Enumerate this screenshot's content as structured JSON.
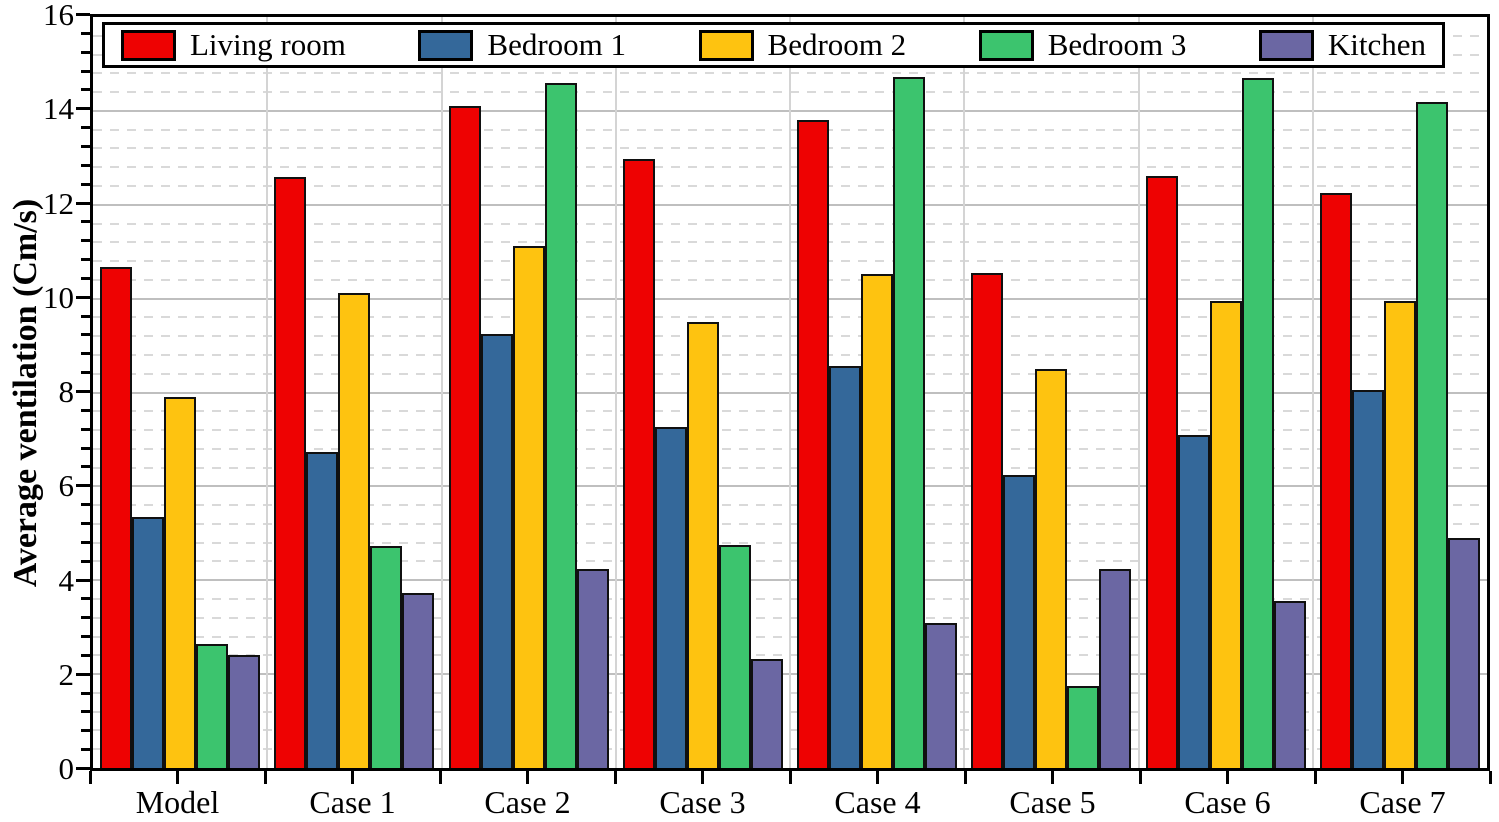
{
  "chart_data": {
    "type": "bar",
    "title": "",
    "xlabel": "",
    "ylabel": "Average ventilation (Cm/s)",
    "ylim": [
      0,
      16
    ],
    "y_major_step": 2,
    "y_minor_step": 0.4,
    "grid": {
      "major_horizontal": "solid",
      "minor_horizontal": "dashed",
      "vertical_group_boundaries": "faint-solid"
    },
    "legend_position": "top-inside-horizontal",
    "categories": [
      "Model",
      "Case 1",
      "Case 2",
      "Case 3",
      "Case 4",
      "Case 5",
      "Case 6",
      "Case 7"
    ],
    "series": [
      {
        "name": "Living room",
        "color": "#ee0202",
        "values": [
          10.67,
          12.6,
          14.1,
          12.97,
          13.8,
          10.55,
          12.62,
          12.25
        ]
      },
      {
        "name": "Bedroom 1",
        "color": "#34689a",
        "values": [
          5.35,
          6.73,
          9.25,
          7.27,
          8.57,
          6.25,
          7.1,
          8.05
        ]
      },
      {
        "name": "Bedroom 2",
        "color": "#fec310",
        "values": [
          7.9,
          10.12,
          11.13,
          9.5,
          10.52,
          8.5,
          9.95,
          9.95
        ]
      },
      {
        "name": "Bedroom 3",
        "color": "#3cc46e",
        "values": [
          2.65,
          4.73,
          14.6,
          4.75,
          14.72,
          1.75,
          14.7,
          14.2
        ]
      },
      {
        "name": "Kitchen",
        "color": "#6b67a3",
        "values": [
          2.4,
          3.72,
          4.25,
          2.33,
          3.1,
          4.25,
          3.55,
          4.9
        ]
      }
    ],
    "axis_color": "#000000",
    "major_grid_color": "#bfbfbf",
    "minor_grid_color": "#d9d9d9"
  }
}
